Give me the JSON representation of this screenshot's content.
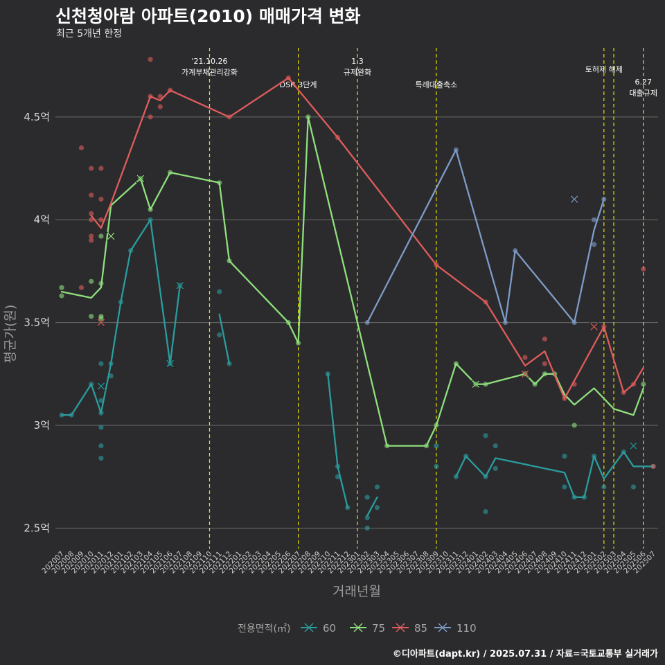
{
  "title": "신천청아람 아파트(2010) 매매가격 변화",
  "subtitle": "최근 5개년 한정",
  "caption": "©디아파트(dapt.kr) / 2025.07.31 / 자료=국토교통부 실거래가",
  "chart_data": {
    "type": "line",
    "xlabel": "거래년월",
    "ylabel": "평균가(원)",
    "legend_title": "전용면적(㎡)",
    "legend_position": "bottom",
    "grid": true,
    "colors": {
      "background": "#2b2b2d",
      "grid": "#6a6a6a",
      "event_line": "#e8e000",
      "title": "#ffffff"
    },
    "ylim": [
      2.4,
      4.85
    ],
    "yticks": [
      {
        "v": 2.5,
        "label": "2.5억"
      },
      {
        "v": 3.0,
        "label": "3억"
      },
      {
        "v": 3.5,
        "label": "3.5억"
      },
      {
        "v": 4.0,
        "label": "4억"
      },
      {
        "v": 4.5,
        "label": "4.5억"
      }
    ],
    "months": [
      "202007",
      "202008",
      "202009",
      "202010",
      "202011",
      "202012",
      "202101",
      "202102",
      "202103",
      "202104",
      "202105",
      "202106",
      "202107",
      "202108",
      "202109",
      "202110",
      "202111",
      "202112",
      "202201",
      "202202",
      "202203",
      "202204",
      "202205",
      "202206",
      "202207",
      "202208",
      "202209",
      "202210",
      "202211",
      "202212",
      "202301",
      "202302",
      "202303",
      "202304",
      "202305",
      "202306",
      "202307",
      "202308",
      "202309",
      "202310",
      "202311",
      "202312",
      "202401",
      "202402",
      "202403",
      "202404",
      "202405",
      "202406",
      "202407",
      "202408",
      "202409",
      "202410",
      "202411",
      "202412",
      "202501",
      "202502",
      "202503",
      "202504",
      "202505",
      "202506",
      "202507"
    ],
    "events": [
      {
        "month": "202110",
        "label": "'21.10.26\n가계부채관리강화",
        "row": 0
      },
      {
        "month": "202207",
        "label": "DSR 3단계",
        "row": 1
      },
      {
        "month": "202301",
        "label": "1.3\n규제완화",
        "row": 0
      },
      {
        "month": "202309",
        "label": "특례대출축소",
        "row": 1
      },
      {
        "month": "202502",
        "label": "토허제 해제",
        "row": 0
      },
      {
        "month": "202503",
        "label": "",
        "row": 0
      },
      {
        "month": "202506",
        "label": "6.27\n대출규제",
        "row": 2
      }
    ],
    "series": [
      {
        "name": "60",
        "color": "#2a9d9f",
        "line": [
          [
            [
              "202007",
              3.05
            ],
            [
              "202008",
              3.05
            ],
            [
              "202010",
              3.2
            ],
            [
              "202011",
              3.06
            ],
            [
              "202012",
              3.3
            ],
            [
              "202101",
              3.6
            ],
            [
              "202102",
              3.85
            ],
            [
              "202104",
              4.0
            ],
            [
              "202106",
              3.3
            ],
            [
              "202107",
              3.68
            ]
          ],
          [
            [
              "202111",
              3.54
            ],
            [
              "202112",
              3.3
            ]
          ],
          [
            [
              "202210",
              3.25
            ],
            [
              "202211",
              2.8
            ],
            [
              "202212",
              2.6
            ]
          ],
          [
            [
              "202302",
              2.56
            ],
            [
              "202303",
              2.65
            ]
          ],
          [
            [
              "202311",
              2.75
            ],
            [
              "202312",
              2.85
            ],
            [
              "202402",
              2.75
            ],
            [
              "202403",
              2.84
            ],
            [
              "202410",
              2.77
            ],
            [
              "202411",
              2.65
            ],
            [
              "202412",
              2.65
            ],
            [
              "202501",
              2.85
            ],
            [
              "202502",
              2.74
            ],
            [
              "202504",
              2.87
            ],
            [
              "202505",
              2.8
            ],
            [
              "202507",
              2.8
            ]
          ]
        ],
        "points": [
          [
            "202007",
            3.05
          ],
          [
            "202008",
            3.05
          ],
          [
            "202010",
            3.2
          ],
          [
            "202011",
            3.12
          ],
          [
            "202011",
            3.06
          ],
          [
            "202011",
            2.99
          ],
          [
            "202011",
            2.9
          ],
          [
            "202011",
            2.84
          ],
          [
            "202011",
            3.3
          ],
          [
            "202012",
            3.3
          ],
          [
            "202012",
            3.24
          ],
          [
            "202101",
            3.6
          ],
          [
            "202102",
            3.85
          ],
          [
            "202104",
            4.0
          ],
          [
            "202106",
            3.3
          ],
          [
            "202107",
            3.68
          ],
          [
            "202111",
            3.65
          ],
          [
            "202111",
            3.44
          ],
          [
            "202112",
            3.3
          ],
          [
            "202210",
            3.25
          ],
          [
            "202211",
            2.8
          ],
          [
            "202211",
            2.75
          ],
          [
            "202212",
            2.6
          ],
          [
            "202302",
            2.65
          ],
          [
            "202302",
            2.55
          ],
          [
            "202302",
            2.5
          ],
          [
            "202303",
            2.7
          ],
          [
            "202303",
            2.6
          ],
          [
            "202309",
            2.9
          ],
          [
            "202309",
            2.8
          ],
          [
            "202311",
            2.75
          ],
          [
            "202312",
            2.85
          ],
          [
            "202402",
            2.95
          ],
          [
            "202402",
            2.75
          ],
          [
            "202402",
            2.58
          ],
          [
            "202403",
            2.9
          ],
          [
            "202403",
            2.79
          ],
          [
            "202410",
            2.85
          ],
          [
            "202410",
            2.7
          ],
          [
            "202411",
            2.65
          ],
          [
            "202412",
            2.65
          ],
          [
            "202501",
            2.85
          ],
          [
            "202502",
            2.7
          ],
          [
            "202504",
            2.87
          ],
          [
            "202505",
            2.7
          ],
          [
            "202507",
            2.8
          ]
        ],
        "crosses": [
          [
            "202011",
            3.19
          ],
          [
            "202106",
            3.3
          ],
          [
            "202107",
            3.68
          ],
          [
            "202505",
            2.9
          ]
        ]
      },
      {
        "name": "75",
        "color": "#8fe07d",
        "line": [
          [
            [
              "202007",
              3.65
            ],
            [
              "202010",
              3.62
            ],
            [
              "202011",
              3.67
            ],
            [
              "202012",
              4.07
            ],
            [
              "202103",
              4.2
            ],
            [
              "202104",
              4.05
            ],
            [
              "202106",
              4.23
            ],
            [
              "202111",
              4.18
            ],
            [
              "202112",
              3.8
            ],
            [
              "202206",
              3.5
            ],
            [
              "202207",
              3.4
            ],
            [
              "202208",
              4.5
            ],
            [
              "202304",
              2.9
            ],
            [
              "202308",
              2.9
            ],
            [
              "202309",
              3.0
            ],
            [
              "202311",
              3.3
            ],
            [
              "202401",
              3.2
            ],
            [
              "202402",
              3.2
            ],
            [
              "202406",
              3.25
            ],
            [
              "202407",
              3.2
            ],
            [
              "202408",
              3.25
            ],
            [
              "202409",
              3.25
            ],
            [
              "202410",
              3.15
            ],
            [
              "202411",
              3.1
            ],
            [
              "202501",
              3.18
            ],
            [
              "202503",
              3.08
            ],
            [
              "202505",
              3.05
            ],
            [
              "202506",
              3.18
            ]
          ]
        ],
        "points": [
          [
            "202007",
            3.67
          ],
          [
            "202007",
            3.63
          ],
          [
            "202010",
            3.7
          ],
          [
            "202010",
            3.53
          ],
          [
            "202011",
            3.92
          ],
          [
            "202011",
            3.69
          ],
          [
            "202011",
            3.53
          ],
          [
            "202011",
            3.52
          ],
          [
            "202103",
            4.2
          ],
          [
            "202104",
            4.05
          ],
          [
            "202106",
            4.23
          ],
          [
            "202111",
            4.18
          ],
          [
            "202112",
            3.8
          ],
          [
            "202206",
            3.5
          ],
          [
            "202207",
            3.4
          ],
          [
            "202208",
            4.5
          ],
          [
            "202304",
            2.9
          ],
          [
            "202308",
            2.9
          ],
          [
            "202309",
            3.0
          ],
          [
            "202311",
            3.3
          ],
          [
            "202401",
            3.2
          ],
          [
            "202402",
            3.2
          ],
          [
            "202406",
            3.25
          ],
          [
            "202407",
            3.2
          ],
          [
            "202408",
            3.25
          ],
          [
            "202409",
            3.25
          ],
          [
            "202411",
            3.0
          ],
          [
            "202506",
            3.2
          ]
        ],
        "crosses": [
          [
            "202012",
            3.92
          ],
          [
            "202103",
            4.2
          ],
          [
            "202401",
            3.2
          ]
        ]
      },
      {
        "name": "85",
        "color": "#e05c5c",
        "line": [
          [
            [
              "202010",
              4.02
            ],
            [
              "202011",
              3.96
            ],
            [
              "202012",
              4.08
            ],
            [
              "202104",
              4.6
            ],
            [
              "202105",
              4.58
            ],
            [
              "202106",
              4.63
            ],
            [
              "202112",
              4.5
            ],
            [
              "202206",
              4.69
            ],
            [
              "202211",
              4.4
            ],
            [
              "202309",
              3.78
            ],
            [
              "202402",
              3.6
            ],
            [
              "202406",
              3.29
            ],
            [
              "202408",
              3.36
            ],
            [
              "202410",
              3.13
            ],
            [
              "202502",
              3.48
            ],
            [
              "202504",
              3.16
            ],
            [
              "202505",
              3.2
            ],
            [
              "202506",
              3.28
            ]
          ]
        ],
        "points": [
          [
            "202009",
            4.35
          ],
          [
            "202009",
            3.67
          ],
          [
            "202010",
            4.25
          ],
          [
            "202010",
            4.12
          ],
          [
            "202010",
            4.03
          ],
          [
            "202010",
            4.0
          ],
          [
            "202010",
            3.92
          ],
          [
            "202010",
            3.9
          ],
          [
            "202011",
            4.25
          ],
          [
            "202011",
            4.1
          ],
          [
            "202011",
            4.0
          ],
          [
            "202104",
            4.78
          ],
          [
            "202104",
            4.6
          ],
          [
            "202104",
            4.5
          ],
          [
            "202105",
            4.6
          ],
          [
            "202105",
            4.55
          ],
          [
            "202106",
            4.63
          ],
          [
            "202112",
            4.5
          ],
          [
            "202206",
            4.69
          ],
          [
            "202211",
            4.4
          ],
          [
            "202309",
            3.78
          ],
          [
            "202402",
            3.6
          ],
          [
            "202406",
            3.33
          ],
          [
            "202408",
            3.42
          ],
          [
            "202408",
            3.3
          ],
          [
            "202410",
            3.13
          ],
          [
            "202411",
            3.2
          ],
          [
            "202502",
            3.48
          ],
          [
            "202504",
            3.16
          ],
          [
            "202505",
            3.2
          ],
          [
            "202506",
            3.76
          ],
          [
            "202507",
            2.8
          ]
        ],
        "crosses": [
          [
            "202011",
            3.5
          ],
          [
            "202406",
            3.25
          ],
          [
            "202501",
            3.48
          ]
        ]
      },
      {
        "name": "110",
        "color": "#7e9cc8",
        "line": [
          [
            [
              "202302",
              3.5
            ],
            [
              "202311",
              4.34
            ],
            [
              "202404",
              3.5
            ],
            [
              "202405",
              3.85
            ],
            [
              "202411",
              3.5
            ],
            [
              "202501",
              3.95
            ],
            [
              "202502",
              4.1
            ]
          ]
        ],
        "points": [
          [
            "202302",
            3.5
          ],
          [
            "202311",
            4.34
          ],
          [
            "202404",
            3.5
          ],
          [
            "202405",
            3.85
          ],
          [
            "202411",
            3.5
          ],
          [
            "202501",
            4.0
          ],
          [
            "202501",
            3.88
          ],
          [
            "202502",
            4.1
          ]
        ],
        "crosses": [
          [
            "202411",
            4.1
          ]
        ]
      }
    ]
  }
}
